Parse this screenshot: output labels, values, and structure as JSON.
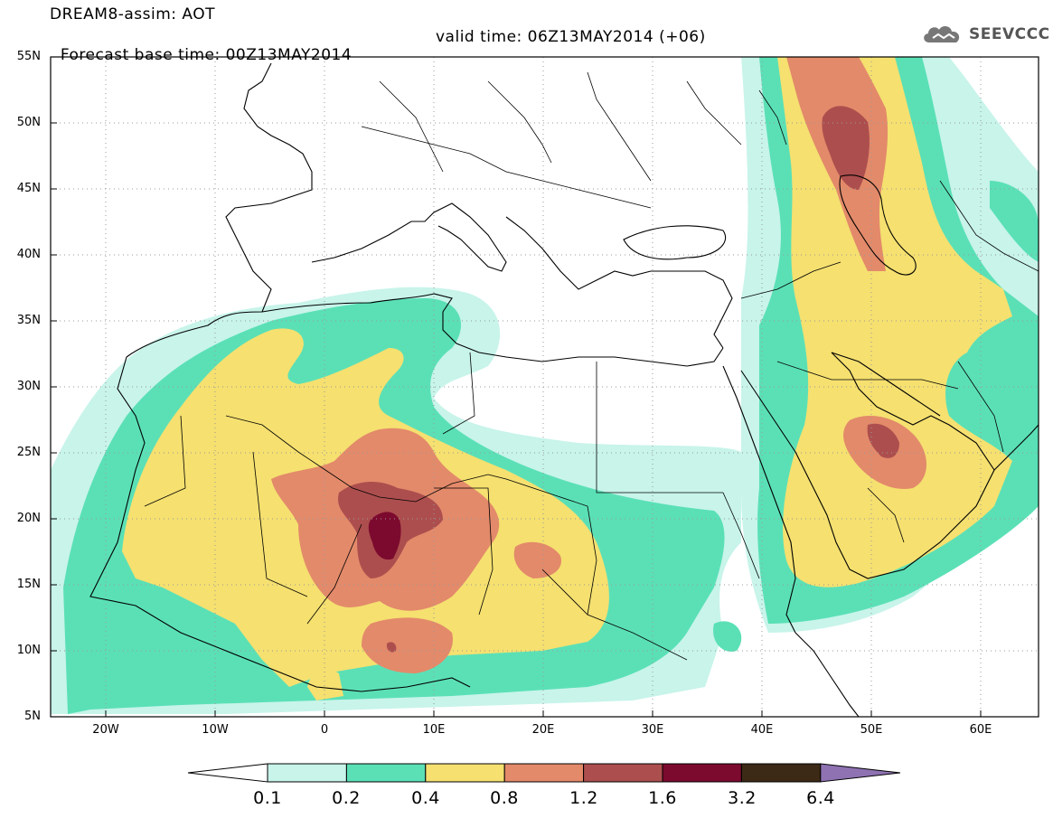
{
  "header": {
    "title_line1": "DREAM8-assim: AOT",
    "base_time": "Forecast base time: 00Z13MAY2014",
    "valid_time": "valid time: 06Z13MAY2014 (+06)",
    "logo_text": "SEEVCCC",
    "logo_icon": "cloud-icon"
  },
  "map": {
    "lat_labels": [
      "55N",
      "50N",
      "45N",
      "40N",
      "35N",
      "30N",
      "25N",
      "20N",
      "15N",
      "10N",
      "5N"
    ],
    "lon_labels": [
      "20W",
      "10W",
      "0",
      "10E",
      "20E",
      "30E",
      "40E",
      "50E",
      "60E"
    ],
    "lat_range": [
      5,
      55
    ],
    "lon_range": [
      -25,
      65
    ],
    "grid": true
  },
  "legend": {
    "labels": [
      "0.1",
      "0.2",
      "0.4",
      "0.8",
      "1.2",
      "1.6",
      "3.2",
      "6.4"
    ],
    "colors": [
      "#c8f4ea",
      "#5be0b6",
      "#f5e070",
      "#e38a6a",
      "#ad4e4e",
      "#7c0a2e",
      "#3c2a16",
      "#8e72b2"
    ],
    "over_color": "#8e72b2",
    "under_color": "#ffffff"
  }
}
